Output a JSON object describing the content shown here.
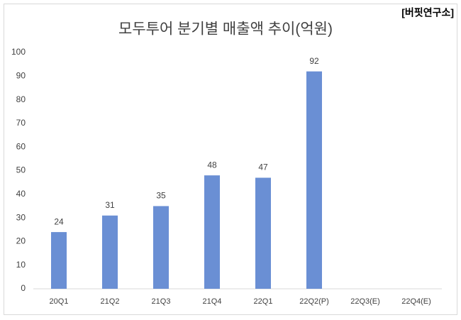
{
  "chart_data": {
    "type": "bar",
    "title": "모두투어 분기별 매출액 추이(억원)",
    "annotation": "[버핏연구소]",
    "categories": [
      "20Q1",
      "21Q2",
      "21Q3",
      "21Q4",
      "22Q1",
      "22Q2(P)",
      "22Q3(E)",
      "22Q4(E)"
    ],
    "values": [
      24,
      31,
      35,
      48,
      47,
      92,
      null,
      null
    ],
    "color": "#6a8fd4",
    "ylim": [
      0,
      100
    ],
    "yticks": [
      0,
      10,
      20,
      30,
      40,
      50,
      60,
      70,
      80,
      90,
      100
    ],
    "grid": false
  }
}
